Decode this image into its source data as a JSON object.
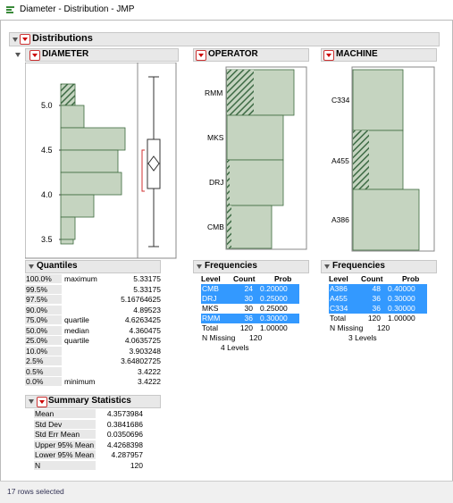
{
  "window": {
    "title": "Diameter - Distribution - JMP"
  },
  "report": {
    "title": "Distributions"
  },
  "diameter": {
    "title": "DIAMETER",
    "ticks": [
      "5.0",
      "4.5",
      "4.0",
      "3.5"
    ],
    "quantiles": {
      "title": "Quantiles",
      "rows": [
        {
          "pct": "100.0%",
          "name": "maximum",
          "value": "5.33175"
        },
        {
          "pct": "99.5%",
          "name": "",
          "value": "5.33175"
        },
        {
          "pct": "97.5%",
          "name": "",
          "value": "5.16764625"
        },
        {
          "pct": "90.0%",
          "name": "",
          "value": "4.89523"
        },
        {
          "pct": "75.0%",
          "name": "quartile",
          "value": "4.6263425"
        },
        {
          "pct": "50.0%",
          "name": "median",
          "value": "4.360475"
        },
        {
          "pct": "25.0%",
          "name": "quartile",
          "value": "4.0635725"
        },
        {
          "pct": "10.0%",
          "name": "",
          "value": "3.903248"
        },
        {
          "pct": "2.5%",
          "name": "",
          "value": "3.64802725"
        },
        {
          "pct": "0.5%",
          "name": "",
          "value": "3.4222"
        },
        {
          "pct": "0.0%",
          "name": "minimum",
          "value": "3.4222"
        }
      ]
    },
    "summary": {
      "title": "Summary Statistics",
      "rows": [
        {
          "name": "Mean",
          "value": "4.3573984"
        },
        {
          "name": "Std Dev",
          "value": "0.3841686"
        },
        {
          "name": "Std Err Mean",
          "value": "0.0350696"
        },
        {
          "name": "Upper 95% Mean",
          "value": "4.4268398"
        },
        {
          "name": "Lower 95% Mean",
          "value": "4.287957"
        },
        {
          "name": "N",
          "value": "120"
        }
      ]
    }
  },
  "operator": {
    "title": "OPERATOR",
    "levels": [
      "RMM",
      "MKS",
      "DRJ",
      "CMB"
    ],
    "freq": {
      "title": "Frequencies",
      "headers": [
        "Level",
        "Count",
        "Prob"
      ],
      "rows": [
        {
          "level": "CMB",
          "count": "24",
          "prob": "0.20000"
        },
        {
          "level": "DRJ",
          "count": "30",
          "prob": "0.25000"
        },
        {
          "level": "MKS",
          "count": "30",
          "prob": "0.25000"
        },
        {
          "level": "RMM",
          "count": "36",
          "prob": "0.30000"
        }
      ],
      "total": {
        "level": "Total",
        "count": "120",
        "prob": "1.00000"
      },
      "missing": "N Missing",
      "missing_val": "120",
      "levels_text": "4  Levels"
    }
  },
  "machine": {
    "title": "MACHINE",
    "levels": [
      "C334",
      "A455",
      "A386"
    ],
    "freq": {
      "title": "Frequencies",
      "headers": [
        "Level",
        "Count",
        "Prob"
      ],
      "rows": [
        {
          "level": "A386",
          "count": "48",
          "prob": "0.40000"
        },
        {
          "level": "A455",
          "count": "36",
          "prob": "0.30000"
        },
        {
          "level": "C334",
          "count": "36",
          "prob": "0.30000"
        }
      ],
      "total": {
        "level": "Total",
        "count": "120",
        "prob": "1.00000"
      },
      "missing": "N Missing",
      "missing_val": "120",
      "levels_text": "3  Levels"
    }
  },
  "status": {
    "text": "17 rows selected"
  },
  "colors": {
    "bar": "#c5d4c0",
    "bar_border": "#3d6a3d",
    "selected": "#3399ff",
    "hatch": "#3e6b45"
  }
}
